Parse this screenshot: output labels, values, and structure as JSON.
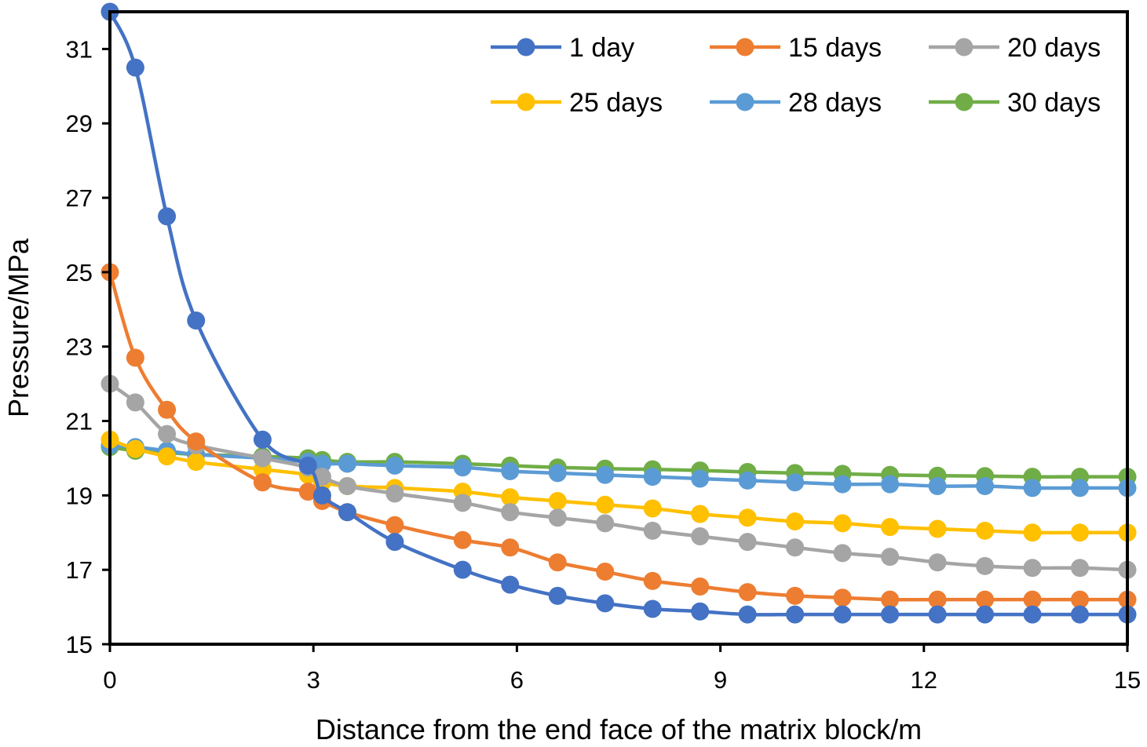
{
  "chart_data": {
    "type": "line",
    "title": "",
    "xlabel": "Distance from the end face of the matrix block/m",
    "ylabel": "Pressure/MPa",
    "xlim": [
      0,
      15
    ],
    "ylim": [
      15,
      32
    ],
    "xticks": [
      0,
      3,
      6,
      9,
      12,
      15
    ],
    "yticks": [
      15,
      17,
      19,
      21,
      23,
      25,
      27,
      29,
      31
    ],
    "grid": false,
    "legend_position": "top-right",
    "x": [
      0,
      0.375,
      0.84,
      1.27,
      2.25,
      2.92,
      3.13,
      3.5,
      4.2,
      5.2,
      5.9,
      6.6,
      7.3,
      8.0,
      8.7,
      9.4,
      10.1,
      10.8,
      11.5,
      12.2,
      12.9,
      13.6,
      14.3,
      15.0
    ],
    "series": [
      {
        "name": "1 day",
        "color": "#4472C4",
        "values": [
          32.0,
          30.5,
          26.5,
          23.7,
          20.5,
          19.8,
          19.0,
          18.55,
          17.75,
          17.0,
          16.6,
          16.3,
          16.1,
          15.95,
          15.88,
          15.8,
          15.8,
          15.8,
          15.8,
          15.8,
          15.8,
          15.8,
          15.8,
          15.8
        ]
      },
      {
        "name": "15 days",
        "color": "#ED7D31",
        "values": [
          25.0,
          22.7,
          21.3,
          20.45,
          19.35,
          19.1,
          18.85,
          18.55,
          18.2,
          17.8,
          17.6,
          17.2,
          16.95,
          16.7,
          16.55,
          16.4,
          16.3,
          16.25,
          16.2,
          16.2,
          16.2,
          16.2,
          16.2,
          16.2
        ]
      },
      {
        "name": "20 days",
        "color": "#A5A5A5",
        "values": [
          22.0,
          21.5,
          20.65,
          20.35,
          20.0,
          19.75,
          19.5,
          19.25,
          19.05,
          18.8,
          18.55,
          18.4,
          18.25,
          18.05,
          17.9,
          17.75,
          17.6,
          17.45,
          17.35,
          17.2,
          17.1,
          17.05,
          17.05,
          17.0
        ]
      },
      {
        "name": "25 days",
        "color": "#FFC000",
        "values": [
          20.5,
          20.25,
          20.05,
          19.9,
          19.7,
          19.55,
          19.35,
          19.25,
          19.2,
          19.1,
          18.95,
          18.85,
          18.75,
          18.65,
          18.5,
          18.4,
          18.3,
          18.25,
          18.15,
          18.1,
          18.05,
          18.0,
          18.0,
          18.0
        ]
      },
      {
        "name": "28 days",
        "color": "#5B9BD5",
        "values": [
          20.35,
          20.3,
          20.2,
          20.1,
          20.0,
          19.9,
          19.85,
          19.85,
          19.8,
          19.75,
          19.65,
          19.6,
          19.55,
          19.5,
          19.45,
          19.4,
          19.35,
          19.3,
          19.3,
          19.25,
          19.25,
          19.2,
          19.2,
          19.2
        ]
      },
      {
        "name": "30 days",
        "color": "#70AD47",
        "values": [
          20.3,
          20.2,
          20.15,
          20.1,
          20.05,
          20.0,
          19.95,
          19.9,
          19.9,
          19.85,
          19.8,
          19.75,
          19.72,
          19.7,
          19.67,
          19.63,
          19.6,
          19.58,
          19.55,
          19.53,
          19.52,
          19.5,
          19.5,
          19.5
        ]
      }
    ]
  }
}
